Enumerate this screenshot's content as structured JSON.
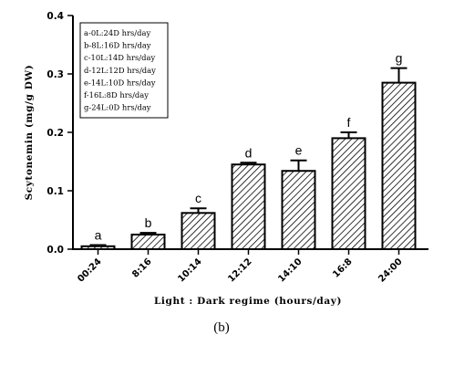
{
  "chart_data": {
    "type": "bar",
    "categories": [
      "00:24",
      "8:16",
      "10:14",
      "12:12",
      "14:10",
      "16:8",
      "24:00"
    ],
    "values": [
      0.005,
      0.025,
      0.062,
      0.145,
      0.134,
      0.19,
      0.285
    ],
    "errors": [
      0.002,
      0.003,
      0.008,
      0.003,
      0.018,
      0.01,
      0.025
    ],
    "letters": [
      "a",
      "b",
      "c",
      "d",
      "e",
      "f",
      "g"
    ],
    "ylabel": "Scytonemin (mg/g DW)",
    "xlabel": "Light : Dark regime (hours/day)",
    "ylim": [
      0,
      0.4
    ],
    "yticks": [
      "0.0",
      "0.1",
      "0.2",
      "0.3",
      "0.4"
    ],
    "legend": [
      "a-0L:24D hrs/day",
      "b-8L:16D hrs/day",
      "c-10L:14D hrs/day",
      "d-12L:12D hrs/day",
      "e-14L:10D hrs/day",
      "f-16L:8D hrs/day",
      "g-24L:0D hrs/day"
    ],
    "legend_position": "top-left",
    "grid": false,
    "bar_fill": "diagonal-hatch",
    "caption": "(b)"
  }
}
